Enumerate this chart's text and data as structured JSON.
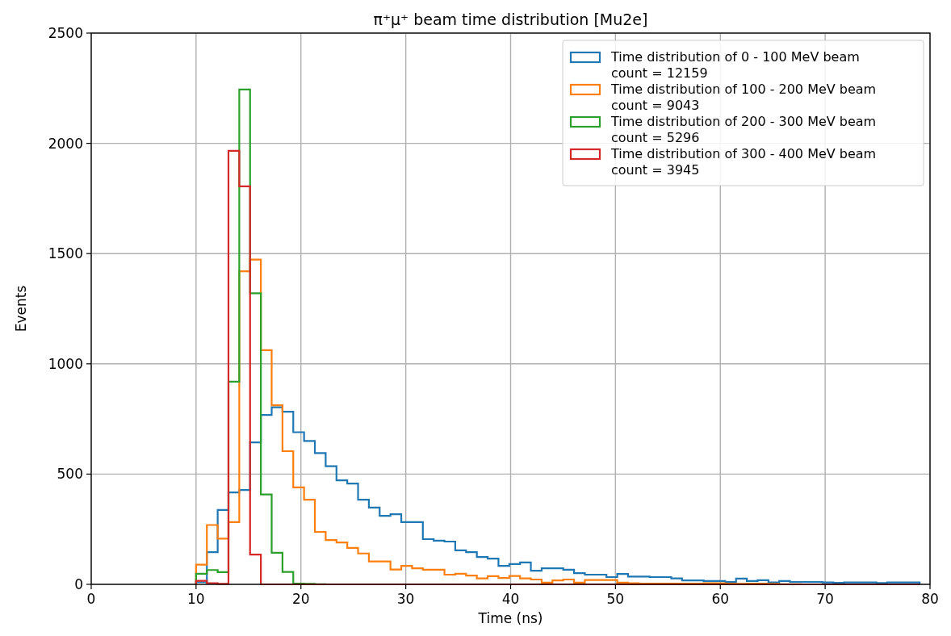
{
  "chart_data": {
    "type": "histogram",
    "title": "π⁺μ⁺ beam time distribution [Mu2e]",
    "xlabel": "Time (ns)",
    "ylabel": "Events",
    "bins": [
      10,
      11.03,
      12.06,
      13.09,
      14.12,
      15.15,
      16.18,
      17.21,
      18.24,
      19.27,
      20.3,
      21.33,
      22.36,
      23.39,
      24.42,
      25.45,
      26.48,
      27.51,
      28.54,
      29.57,
      30.6,
      31.63,
      32.66,
      33.69,
      34.72,
      35.75,
      36.78,
      37.81,
      38.84,
      39.87,
      40.9,
      41.93,
      42.96,
      43.99,
      45.02,
      46.05,
      47.08,
      48.11,
      49.14,
      50.17,
      51.2,
      52.23,
      53.26,
      54.29,
      55.32,
      56.35,
      57.38,
      58.41,
      59.44,
      60.47,
      61.5,
      62.53,
      63.56,
      64.59,
      65.62,
      66.65,
      67.68,
      68.71,
      69.74,
      70.77,
      71.8,
      72.83,
      73.86,
      74.89,
      75.92,
      76.95,
      77.98,
      79.01
    ],
    "series": [
      {
        "name": "Time distribution of 0 - 100 MeV beam\ncount = 12159",
        "color": "#1f77b4",
        "values": [
          10,
          146,
          337,
          417,
          428,
          644,
          768,
          803,
          783,
          690,
          650,
          595,
          536,
          472,
          457,
          384,
          348,
          311,
          318,
          282,
          282,
          205,
          198,
          194,
          154,
          146,
          124,
          117,
          84,
          92,
          99,
          62,
          73,
          73,
          66,
          51,
          44,
          44,
          33,
          47,
          35,
          35,
          33,
          33,
          27,
          18,
          18,
          15,
          15,
          11,
          26,
          15,
          19,
          9,
          15,
          11,
          11,
          11,
          9,
          7,
          9,
          9,
          9,
          6,
          9,
          9,
          9
        ]
      },
      {
        "name": "Time distribution of 100 - 200 MeV beam\ncount = 9043",
        "color": "#ff7f0e",
        "values": [
          89,
          269,
          207,
          282,
          1420,
          1473,
          1062,
          812,
          604,
          440,
          384,
          238,
          201,
          190,
          165,
          140,
          104,
          104,
          67,
          84,
          73,
          66,
          66,
          44,
          48,
          40,
          27,
          37,
          29,
          38,
          27,
          22,
          8,
          18,
          22,
          8,
          20,
          20,
          20,
          8,
          5,
          3,
          3,
          3,
          3,
          3,
          3,
          5,
          5,
          3,
          2,
          3,
          3,
          2,
          1,
          1,
          0,
          0,
          0,
          0,
          0,
          0,
          0,
          0,
          0,
          0,
          0
        ]
      },
      {
        "name": "Time distribution of 200 - 300 MeV beam\ncount = 5296",
        "color": "#2ca02c",
        "values": [
          48,
          65,
          55,
          919,
          2244,
          1320,
          408,
          143,
          56,
          3,
          2,
          1,
          0,
          0,
          0,
          0,
          0,
          0,
          0,
          0,
          0,
          0,
          0,
          0,
          0,
          0,
          0,
          0,
          0,
          0,
          0,
          0,
          0,
          0,
          0,
          0,
          0,
          0,
          0,
          0,
          0,
          0,
          0,
          0,
          0,
          0,
          0,
          0,
          0,
          0,
          0,
          0,
          0,
          0,
          0,
          0,
          0,
          0,
          0,
          0,
          0,
          0,
          0,
          0,
          0,
          0,
          0
        ]
      },
      {
        "name": "Time distribution of 300 - 400 MeV beam\ncount = 3945",
        "color": "#d62728",
        "values": [
          16,
          5,
          2,
          1966,
          1805,
          135,
          0,
          0,
          0,
          0,
          0,
          0,
          0,
          0,
          0,
          0,
          0,
          0,
          0,
          0,
          0,
          0,
          0,
          0,
          0,
          0,
          0,
          0,
          0,
          0,
          0,
          0,
          0,
          0,
          0,
          0,
          0,
          0,
          0,
          0,
          0,
          0,
          0,
          0,
          0,
          0,
          0,
          0,
          0,
          0,
          0,
          0,
          0,
          0,
          0,
          0,
          0,
          0,
          0,
          0,
          0,
          0,
          0,
          0,
          0,
          0,
          0
        ]
      }
    ],
    "xlim": [
      0,
      80
    ],
    "xticks": [
      0,
      10,
      20,
      30,
      40,
      50,
      60,
      70,
      80
    ],
    "ylim": [
      0,
      2500
    ],
    "yticks": [
      0,
      500,
      1000,
      1500,
      2000,
      2500
    ],
    "grid": true,
    "legend": "top right"
  }
}
